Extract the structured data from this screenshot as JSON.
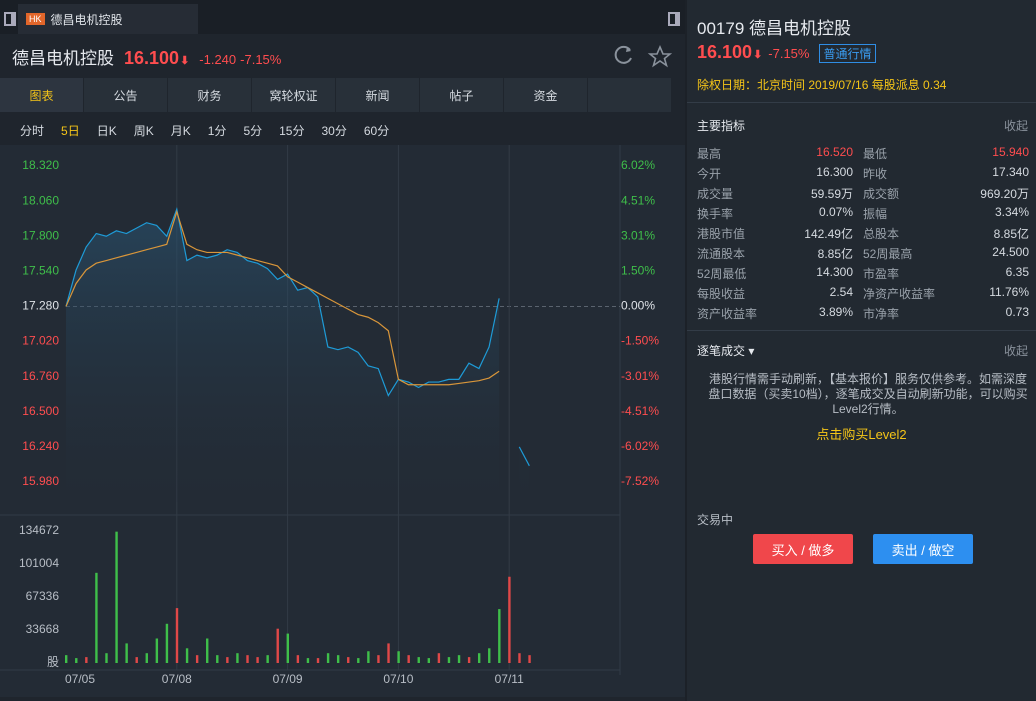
{
  "tab": {
    "badge": "HK",
    "title": "德昌电机控股"
  },
  "quote": {
    "name": "德昌电机控股",
    "price": "16.100",
    "change": "-1.240",
    "change_pct": "-7.15%"
  },
  "tabs": [
    "图表",
    "公告",
    "财务",
    "窝轮权证",
    "新闻",
    "帖子",
    "资金"
  ],
  "periods": [
    "分时",
    "5日",
    "日K",
    "周K",
    "月K",
    "1分",
    "5分",
    "15分",
    "30分",
    "60分"
  ],
  "chart_data": [
    {
      "type": "line",
      "series": [
        {
          "name": "price",
          "color": "#1e9bd7",
          "values": [
            17.28,
            17.55,
            17.72,
            17.82,
            17.8,
            17.84,
            17.82,
            17.86,
            17.9,
            17.88,
            17.8,
            18.0,
            17.62,
            17.66,
            17.64,
            17.66,
            17.7,
            17.68,
            17.62,
            17.6,
            17.56,
            17.48,
            17.52,
            17.4,
            17.42,
            17.35,
            16.98,
            16.96,
            16.98,
            16.94,
            16.84,
            16.82,
            16.62,
            16.74,
            16.72,
            16.68,
            16.72,
            16.72,
            16.74,
            16.74,
            16.86,
            16.82,
            16.98,
            17.34,
            null,
            16.24,
            16.1,
            null,
            null,
            null,
            null,
            null,
            null,
            null,
            null
          ]
        },
        {
          "name": "average",
          "color": "#d9963a",
          "values": [
            17.28,
            17.45,
            17.55,
            17.6,
            17.62,
            17.64,
            17.66,
            17.68,
            17.7,
            17.72,
            17.74,
            17.98,
            17.74,
            17.7,
            17.68,
            17.68,
            17.68,
            17.66,
            17.64,
            17.62,
            17.6,
            17.58,
            17.5,
            17.46,
            17.42,
            17.38,
            17.34,
            17.3,
            17.26,
            17.22,
            17.2,
            17.16,
            17.1,
            16.74,
            16.7,
            16.7,
            16.7,
            16.7,
            16.7,
            16.71,
            16.72,
            16.73,
            16.75,
            16.8,
            null,
            null,
            null,
            null,
            null,
            null,
            null,
            null,
            null,
            null,
            null
          ]
        }
      ],
      "ylim": [
        15.98,
        18.32
      ],
      "yticks": [
        {
          "value": 18.32,
          "label": "18.320"
        },
        {
          "value": 18.06,
          "label": "18.060"
        },
        {
          "value": 17.8,
          "label": "17.800"
        },
        {
          "value": 17.54,
          "label": "17.540"
        },
        {
          "value": 17.28,
          "label": "17.280"
        },
        {
          "value": 17.02,
          "label": "17.020"
        },
        {
          "value": 16.76,
          "label": "16.760"
        },
        {
          "value": 16.5,
          "label": "16.500"
        },
        {
          "value": 16.24,
          "label": "16.240"
        },
        {
          "value": 15.98,
          "label": "15.980"
        }
      ],
      "y2lim": [
        -7.52,
        6.02
      ],
      "y2ticks": [
        {
          "value": 6.02,
          "label": "6.02%"
        },
        {
          "value": 4.51,
          "label": "4.51%"
        },
        {
          "value": 3.01,
          "label": "3.01%"
        },
        {
          "value": 1.5,
          "label": "1.50%"
        },
        {
          "value": 0,
          "label": "0.00%"
        },
        {
          "value": -1.5,
          "label": "-1.50%"
        },
        {
          "value": -3.01,
          "label": "-3.01%"
        },
        {
          "value": -4.51,
          "label": "-4.51%"
        },
        {
          "value": -6.02,
          "label": "-6.02%"
        },
        {
          "value": -7.52,
          "label": "-7.52%"
        }
      ]
    },
    {
      "type": "bar",
      "categories": [
        "07/05",
        null,
        null,
        null,
        null,
        null,
        null,
        null,
        null,
        null,
        null,
        "07/08",
        null,
        null,
        null,
        null,
        null,
        null,
        null,
        null,
        null,
        null,
        "07/09",
        null,
        null,
        null,
        null,
        null,
        null,
        null,
        null,
        null,
        null,
        "07/10",
        null,
        null,
        null,
        null,
        null,
        null,
        null,
        null,
        null,
        null,
        "07/11",
        null,
        null,
        null,
        null,
        null,
        null,
        null,
        null,
        null,
        null
      ],
      "values": [
        8000,
        5000,
        6000,
        92000,
        10000,
        134000,
        20000,
        6000,
        10000,
        25000,
        40000,
        56000,
        15000,
        8000,
        25000,
        8000,
        6000,
        10000,
        8000,
        6000,
        8000,
        35000,
        30000,
        8000,
        5000,
        5000,
        10000,
        8000,
        6000,
        5000,
        12000,
        8000,
        20000,
        12000,
        8000,
        6000,
        5000,
        10000,
        6000,
        8000,
        6000,
        10000,
        15000,
        55000,
        88000,
        10000,
        8000,
        null,
        null,
        null,
        null,
        null,
        null,
        null,
        null
      ],
      "colors": [
        "#3fbf4a",
        "#3fbf4a",
        "#e04848",
        "#3fbf4a",
        "#3fbf4a",
        "#3fbf4a",
        "#3fbf4a",
        "#e04848",
        "#3fbf4a",
        "#3fbf4a",
        "#3fbf4a",
        "#e04848",
        "#3fbf4a",
        "#e04848",
        "#3fbf4a",
        "#3fbf4a",
        "#e04848",
        "#3fbf4a",
        "#e04848",
        "#e04848",
        "#3fbf4a",
        "#e04848",
        "#3fbf4a",
        "#e04848",
        "#3fbf4a",
        "#e04848",
        "#3fbf4a",
        "#3fbf4a",
        "#e04848",
        "#3fbf4a",
        "#3fbf4a",
        "#e04848",
        "#e04848",
        "#3fbf4a",
        "#e04848",
        "#3fbf4a",
        "#3fbf4a",
        "#e04848",
        "#3fbf4a",
        "#3fbf4a",
        "#e04848",
        "#3fbf4a",
        "#3fbf4a",
        "#3fbf4a",
        "#e04848",
        "#e04848",
        "#e04848",
        "#3fbf4a",
        "#3fbf4a",
        "#3fbf4a",
        "#3fbf4a",
        "#3fbf4a",
        "#3fbf4a",
        "#3fbf4a",
        "#3fbf4a"
      ],
      "ylim": [
        0,
        134672
      ],
      "yticks": [
        134672,
        101004,
        67336,
        33668,
        {
          "value": 0,
          "label": "股"
        }
      ]
    }
  ],
  "side": {
    "code": "00179",
    "name": "德昌电机控股",
    "price": "16.100",
    "change_pct": "-7.15%",
    "quote_type": "普通行情",
    "dividend": "除权日期：北京时间 2019/07/16 每股派息 0.34",
    "indicators_title": "主要指标",
    "collapse": "收起",
    "metrics": [
      [
        {
          "label": "最高",
          "value": "16.520"
        },
        {
          "label": "最低",
          "value": "15.940"
        }
      ],
      [
        {
          "label": "今开",
          "value": "16.300"
        },
        {
          "label": "昨收",
          "value": "17.340"
        }
      ],
      [
        {
          "label": "成交量",
          "value": "59.59万"
        },
        {
          "label": "成交额",
          "value": "969.20万"
        }
      ],
      [
        {
          "label": "换手率",
          "value": "0.07%"
        },
        {
          "label": "振幅",
          "value": "3.34%"
        }
      ],
      [
        {
          "label": "港股市值",
          "value": "142.49亿"
        },
        {
          "label": "总股本",
          "value": "8.85亿"
        }
      ],
      [
        {
          "label": "流通股本",
          "value": "8.85亿"
        },
        {
          "label": "52周最高",
          "value": "24.500"
        }
      ],
      [
        {
          "label": "52周最低",
          "value": "14.300"
        },
        {
          "label": "市盈率",
          "value": "6.35"
        }
      ],
      [
        {
          "label": "每股收益",
          "value": "2.54"
        },
        {
          "label": "净资产收益率",
          "value": "11.76%"
        }
      ],
      [
        {
          "label": "资产收益率",
          "value": "3.89%"
        },
        {
          "label": "市净率",
          "value": "0.73"
        }
      ]
    ],
    "trades_title": "逐笔成交",
    "trades_collapse": "收起",
    "notice": "港股行情需手动刷新，【基本报价】服务仅供参考。如需深度盘口数据（买卖10档），逐笔成交及自动刷新功能，可以购买Level2行情。",
    "level2": "点击购买Level2",
    "status": "交易中",
    "buy": "买入 / 做多",
    "sell": "卖出 / 做空"
  }
}
